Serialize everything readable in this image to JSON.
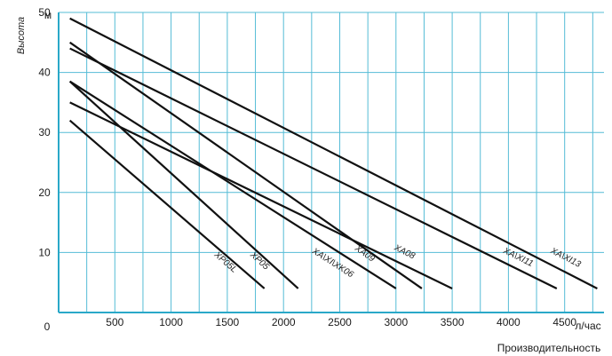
{
  "chart_data": {
    "type": "line",
    "title": "",
    "xlabel": "Производительность",
    "ylabel": "Высота",
    "x_unit": "л/час",
    "y_unit": "м",
    "xlim": [
      0,
      4850
    ],
    "ylim": [
      0,
      50
    ],
    "x_origin_label": "0",
    "x_tick_labels": [
      "500",
      "1000",
      "1500",
      "2000",
      "2500",
      "3000",
      "3500",
      "4000",
      "4500"
    ],
    "y_tick_labels": [
      "10",
      "20",
      "30",
      "40",
      "50"
    ],
    "grid": true,
    "series": [
      {
        "name": "XP05L",
        "x": [
          100,
          1830
        ],
        "y": [
          32,
          4
        ],
        "label_at": [
          1380,
          9.5
        ]
      },
      {
        "name": "XP05",
        "x": [
          100,
          2130
        ],
        "y": [
          38.5,
          4
        ],
        "label_at": [
          1700,
          9.5
        ]
      },
      {
        "name": "XA\\XI\\XK06",
        "x": [
          100,
          3000
        ],
        "y": [
          38.5,
          4
        ],
        "label_at": [
          2250,
          10
        ]
      },
      {
        "name": "XA09",
        "x": [
          100,
          3230
        ],
        "y": [
          45,
          4
        ],
        "label_at": [
          2630,
          10.5
        ]
      },
      {
        "name": "XA08",
        "x": [
          100,
          3500
        ],
        "y": [
          35,
          4
        ],
        "label_at": [
          2980,
          10.5
        ]
      },
      {
        "name": "XA\\XI11",
        "x": [
          100,
          4430
        ],
        "y": [
          44,
          4
        ],
        "label_at": [
          3950,
          10
        ]
      },
      {
        "name": "XA\\XI13",
        "x": [
          100,
          4790
        ],
        "y": [
          49,
          4
        ],
        "label_at": [
          4370,
          10
        ]
      }
    ]
  }
}
